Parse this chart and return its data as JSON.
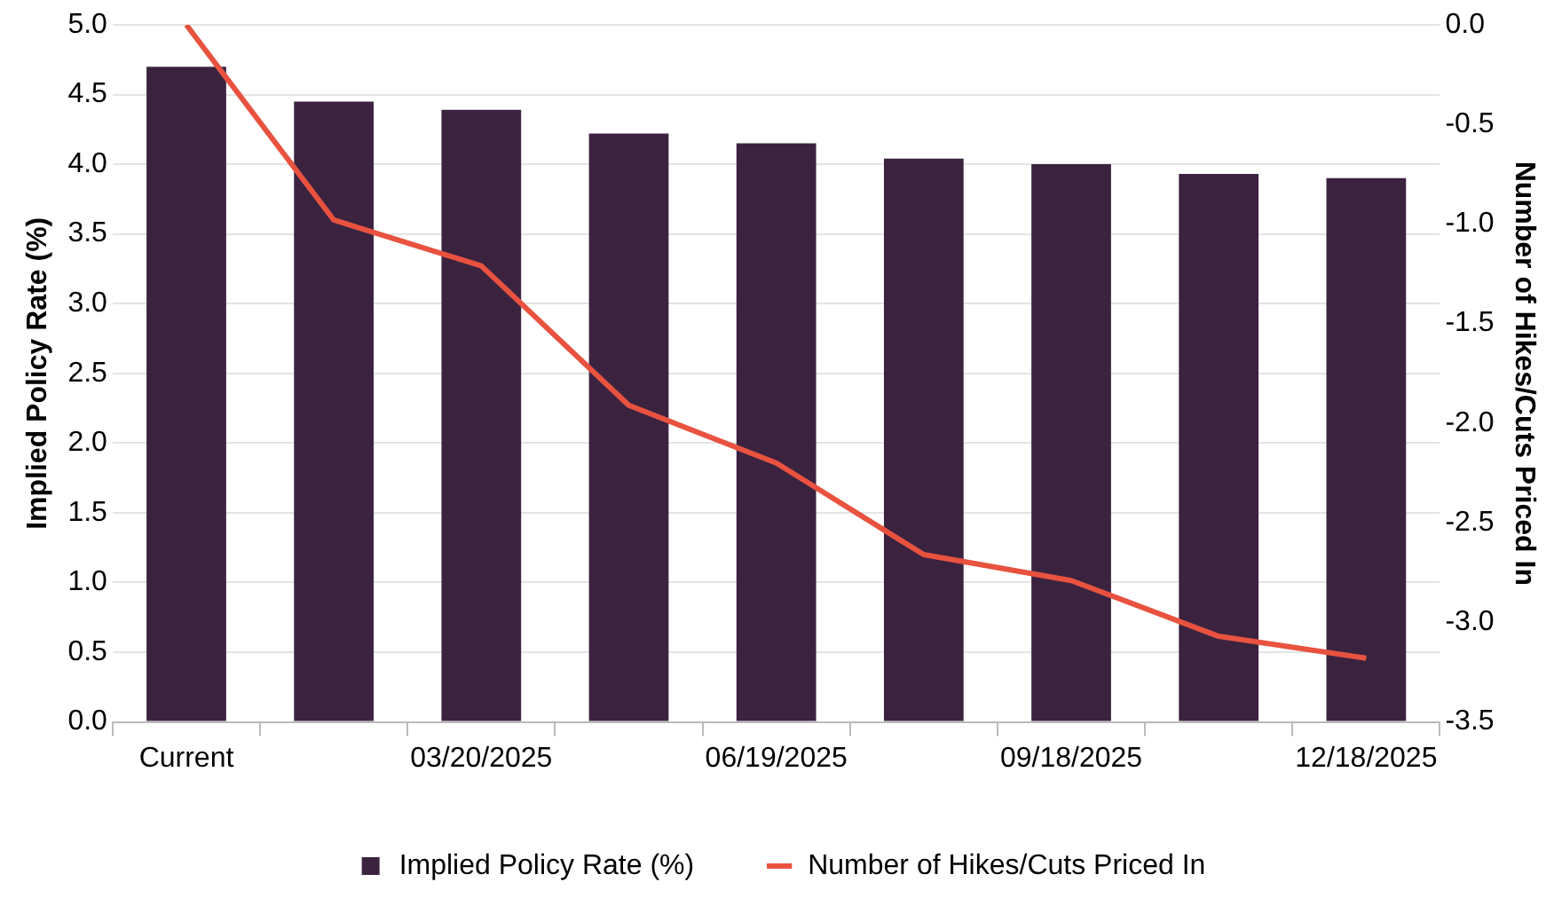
{
  "chart_data": {
    "type": "bar",
    "xlabel": null,
    "ylabel": "Implied Policy Rate (%)",
    "y2label": "Number of Hikes/Cuts Priced In",
    "categories": [
      "Current",
      null,
      "03/20/2025",
      null,
      "06/19/2025",
      null,
      "09/18/2025",
      null,
      "12/18/2025"
    ],
    "series": [
      {
        "name": "Implied Policy Rate (%)",
        "color": "#3b2340",
        "values": [
          4.7,
          4.45,
          4.39,
          4.22,
          4.15,
          4.04,
          4.0,
          3.93,
          3.9
        ]
      },
      {
        "name": "Number of Hikes/Cuts Priced In",
        "type": "line",
        "axis": "y2",
        "color": "#e8523f",
        "values": [
          0.0,
          -0.98,
          -1.21,
          -1.91,
          -2.2,
          -2.66,
          -2.79,
          -3.07,
          -3.18
        ]
      }
    ],
    "ylim": [
      0,
      5
    ],
    "yticks": [
      {
        "value": 0,
        "label": "0.0"
      },
      0.5,
      {
        "value": 1,
        "label": "1.0"
      },
      1.5,
      {
        "value": 2,
        "label": "2.0"
      },
      2.5,
      {
        "value": 3,
        "label": "3.0"
      },
      3.5,
      {
        "value": 4,
        "label": "4.0"
      },
      4.5,
      {
        "value": 5,
        "label": "5.0"
      }
    ],
    "y2lim": [
      -3.5,
      0
    ],
    "y2ticks": [
      -3.5,
      {
        "value": -3,
        "label": "-3.0"
      },
      -2.5,
      {
        "value": -2,
        "label": "-2.0"
      },
      -1.5,
      {
        "value": -1,
        "label": "-1.0"
      },
      -0.5,
      {
        "value": 0,
        "label": "0.0"
      }
    ],
    "grid": "y",
    "legend": "bottom",
    "marker": "none"
  }
}
